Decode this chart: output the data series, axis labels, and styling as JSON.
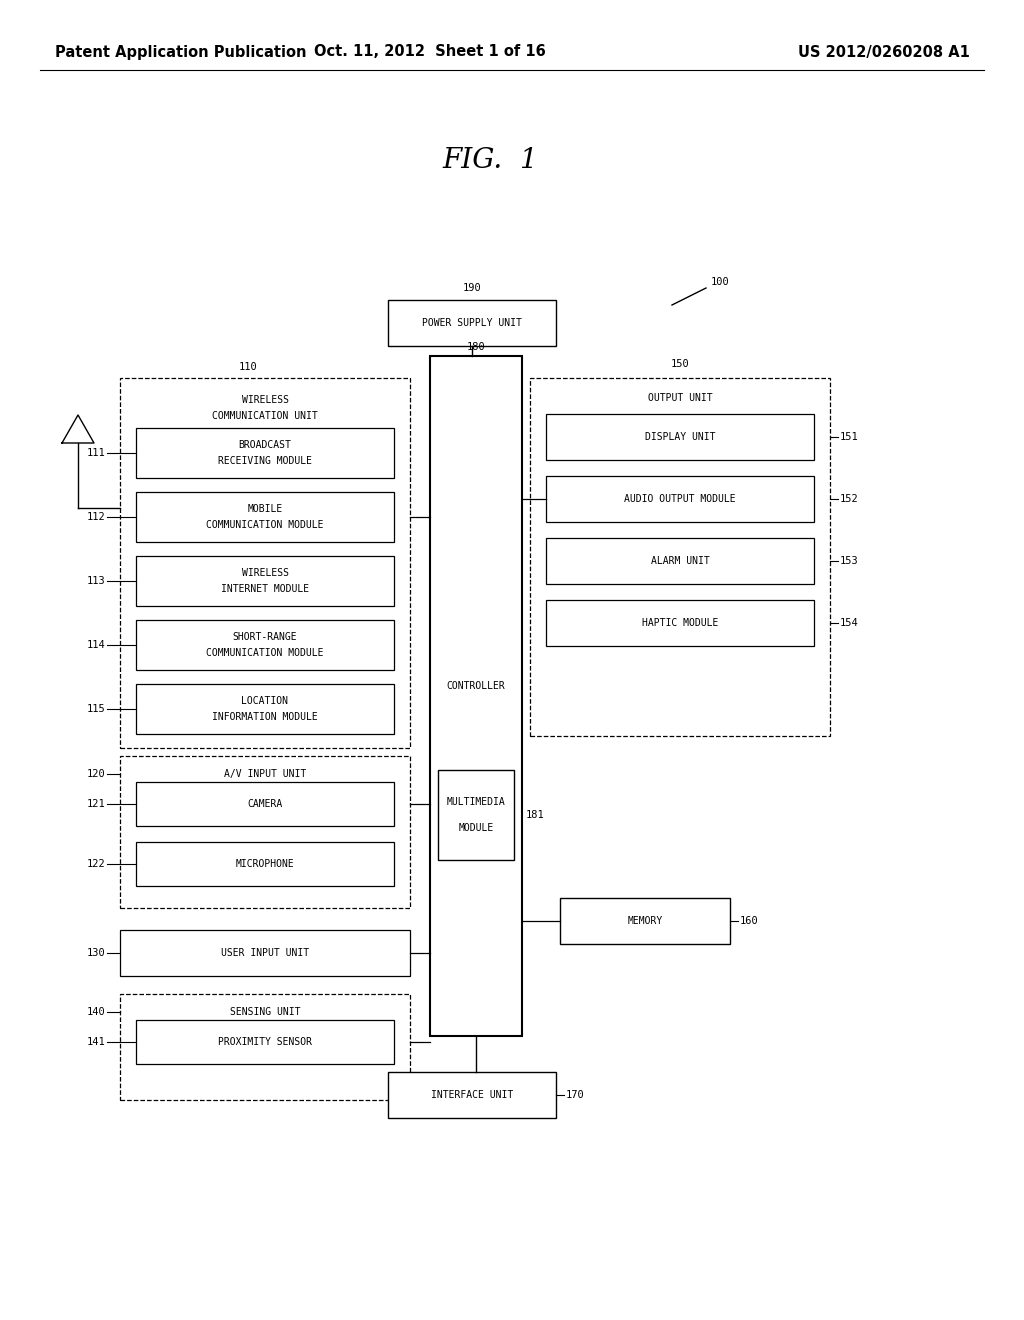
{
  "title": "FIG.  1",
  "header_left": "Patent Application Publication",
  "header_mid": "Oct. 11, 2012  Sheet 1 of 16",
  "header_right": "US 2012/0260208 A1",
  "bg_color": "#ffffff",
  "font_size_header": 10.5,
  "font_size_title": 20,
  "font_size_label": 7.0,
  "font_size_num": 7.5
}
